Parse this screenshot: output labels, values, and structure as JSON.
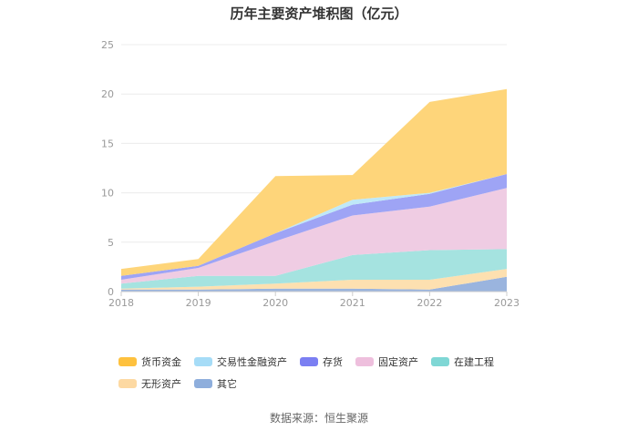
{
  "chart_data": {
    "type": "area",
    "stacked": true,
    "title": "历年主要资产堆积图（亿元）",
    "x": [
      "2018",
      "2019",
      "2020",
      "2021",
      "2022",
      "2023"
    ],
    "y_ticks": [
      "0",
      "5",
      "10",
      "15",
      "20",
      "25"
    ],
    "ylim": [
      0,
      25
    ],
    "series": [
      {
        "name": "其它",
        "color": "#9ab4de",
        "values": [
          0.2,
          0.2,
          0.3,
          0.3,
          0.2,
          1.5
        ]
      },
      {
        "name": "无形资产",
        "color": "#fde0b0",
        "values": [
          0.1,
          0.3,
          0.5,
          0.9,
          1.0,
          0.8
        ]
      },
      {
        "name": "在建工程",
        "color": "#a5e3e0",
        "values": [
          0.5,
          1.1,
          0.8,
          2.5,
          3.0,
          2.0
        ]
      },
      {
        "name": "固定资产",
        "color": "#efcce3",
        "values": [
          0.4,
          0.8,
          3.5,
          4.0,
          4.4,
          6.2
        ]
      },
      {
        "name": "存货",
        "color": "#9ea4f5",
        "values": [
          0.4,
          0.2,
          0.8,
          1.1,
          1.3,
          1.4
        ]
      },
      {
        "name": "交易性金融资产",
        "color": "#bfe8f8",
        "values": [
          0.0,
          0.0,
          0.0,
          0.5,
          0.1,
          0.0
        ]
      },
      {
        "name": "货币资金",
        "color": "#fed57a",
        "values": [
          0.7,
          0.7,
          5.8,
          2.5,
          9.2,
          8.6
        ]
      }
    ],
    "legend_order": [
      "货币资金",
      "交易性金融资产",
      "存货",
      "固定资产",
      "在建工程",
      "无形资产",
      "其它"
    ],
    "legend_colors": {
      "货币资金": "#fec13e",
      "交易性金融资产": "#a6dcf7",
      "存货": "#7b7ff2",
      "固定资产": "#eebfdd",
      "在建工程": "#7fd7d5",
      "无形资产": "#fdd9a2",
      "其它": "#8eaedc"
    },
    "source": "数据来源：恒生聚源"
  }
}
